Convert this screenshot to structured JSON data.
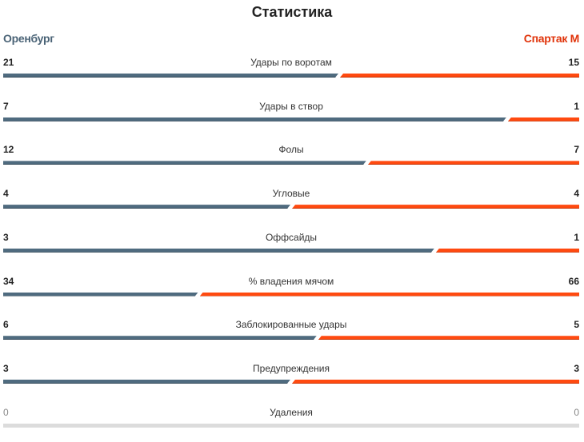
{
  "title": "Статистика",
  "home_team": "Оренбург",
  "away_team": "Спартак М",
  "colors": {
    "home": "#4f6b7f",
    "away": "#ff4a10",
    "empty": "#dcdcdc"
  },
  "stats": [
    {
      "label": "Удары по воротам",
      "home": 21,
      "away": 15
    },
    {
      "label": "Удары в створ",
      "home": 7,
      "away": 1
    },
    {
      "label": "Фолы",
      "home": 12,
      "away": 7
    },
    {
      "label": "Угловые",
      "home": 4,
      "away": 4
    },
    {
      "label": "Оффсайды",
      "home": 3,
      "away": 1
    },
    {
      "label": "% владения мячом",
      "home": 34,
      "away": 66
    },
    {
      "label": "Заблокированные удары",
      "home": 6,
      "away": 5
    },
    {
      "label": "Предупреждения",
      "home": 3,
      "away": 3
    },
    {
      "label": "Удаления",
      "home": 0,
      "away": 0
    }
  ]
}
